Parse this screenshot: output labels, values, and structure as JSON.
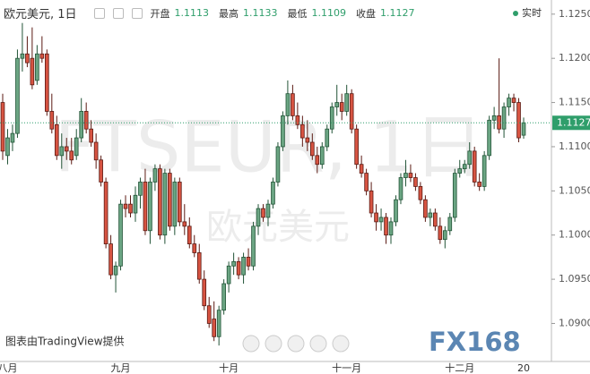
{
  "chart_data": {
    "type": "candlestick",
    "title": "欧元美元, 1日",
    "legend_items": [
      {
        "label": "开盘",
        "value": 1.1113
      },
      {
        "label": "最高",
        "value": 1.1133
      },
      {
        "label": "最低",
        "value": 1.1109
      },
      {
        "label": "收盘",
        "value": 1.1127
      }
    ],
    "realtime_label": "实时",
    "watermark": "FTSEUR, 1日",
    "watermark_sub": "欧元美元",
    "credit": "图表由TradingView提供",
    "logo": "FX168",
    "last_price": {
      "value": 1.1127,
      "label": "1.1127"
    },
    "up_color": "#6ba583",
    "down_color": "#d75442",
    "up_border": "#225437",
    "down_border": "#5b1a13",
    "categories": [
      null,
      "八月",
      null,
      null,
      null,
      null,
      null,
      null,
      null,
      null,
      null,
      null,
      null,
      null,
      null,
      null,
      null,
      null,
      null,
      null,
      null,
      null,
      null,
      null,
      "九月",
      null,
      null,
      null,
      null,
      null,
      null,
      null,
      null,
      null,
      null,
      null,
      null,
      null,
      null,
      null,
      null,
      null,
      null,
      null,
      null,
      null,
      "十月",
      null,
      null,
      null,
      null,
      null,
      null,
      null,
      null,
      null,
      null,
      null,
      null,
      null,
      null,
      null,
      null,
      null,
      null,
      null,
      null,
      null,
      null,
      null,
      "十一月",
      null,
      null,
      null,
      null,
      null,
      null,
      null,
      null,
      null,
      null,
      null,
      null,
      null,
      null,
      null,
      null,
      null,
      null,
      null,
      null,
      null,
      null,
      "十二月",
      null,
      null,
      null,
      null,
      null,
      null,
      null,
      null,
      null,
      null,
      null,
      null,
      "20"
    ],
    "open": [
      1.115,
      1.109,
      1.1105,
      1.1115,
      1.12,
      1.1205,
      1.12,
      1.1175,
      1.1205,
      1.1205,
      1.114,
      1.1125,
      1.109,
      1.11,
      1.1095,
      1.109,
      1.111,
      1.114,
      1.112,
      1.1105,
      1.1085,
      1.106,
      1.099,
      1.0955,
      1.0965,
      1.1035,
      1.1035,
      1.1025,
      1.1045,
      1.106,
      1.1005,
      1.106,
      1.1075,
      1.1,
      1.107,
      1.101,
      1.106,
      1.1015,
      1.101,
      1.099,
      1.098,
      1.095,
      1.092,
      1.0905,
      1.0885,
      1.0915,
      1.0945,
      1.0965,
      1.097,
      1.0955,
      1.0975,
      1.0965,
      1.101,
      1.103,
      1.102,
      1.1035,
      1.106,
      1.11,
      1.1135,
      1.116,
      1.1135,
      1.1125,
      1.111,
      1.1105,
      1.109,
      1.108,
      1.11,
      1.112,
      1.1145,
      1.115,
      1.114,
      1.116,
      1.112,
      1.108,
      1.107,
      1.105,
      1.1025,
      1.1015,
      1.102,
      1.1,
      1.1015,
      1.104,
      1.1065,
      1.107,
      1.1065,
      1.1055,
      1.104,
      1.102,
      1.1025,
      1.101,
      1.0995,
      1.1005,
      1.102,
      1.107,
      1.1075,
      1.108,
      1.1095,
      1.106,
      1.1055,
      1.109,
      1.113,
      1.1135,
      1.112,
      1.1145,
      1.1155,
      1.115,
      1.1113
    ],
    "high": [
      1.116,
      1.112,
      1.1125,
      1.121,
      1.124,
      1.1225,
      1.1235,
      1.1215,
      1.1225,
      1.121,
      1.116,
      1.1135,
      1.1115,
      1.111,
      1.111,
      1.112,
      1.1155,
      1.115,
      1.113,
      1.1115,
      1.109,
      1.1065,
      1.1,
      1.097,
      1.104,
      1.1045,
      1.1045,
      1.1055,
      1.1065,
      1.1075,
      1.1065,
      1.108,
      1.108,
      1.1075,
      1.1075,
      1.1065,
      1.1065,
      1.1035,
      1.102,
      1.1,
      1.099,
      1.096,
      1.093,
      1.0925,
      1.092,
      1.095,
      1.097,
      1.098,
      1.0975,
      1.098,
      1.0985,
      1.1015,
      1.1035,
      1.1035,
      1.104,
      1.1065,
      1.1105,
      1.114,
      1.1175,
      1.117,
      1.115,
      1.1135,
      1.113,
      1.1115,
      1.11,
      1.1105,
      1.1125,
      1.115,
      1.117,
      1.116,
      1.117,
      1.1165,
      1.1125,
      1.109,
      1.1075,
      1.106,
      1.1035,
      1.103,
      1.1025,
      1.102,
      1.1045,
      1.107,
      1.1085,
      1.108,
      1.107,
      1.106,
      1.1045,
      1.103,
      1.103,
      1.102,
      1.101,
      1.1025,
      1.1075,
      1.1085,
      1.1085,
      1.1105,
      1.11,
      1.107,
      1.1095,
      1.1135,
      1.1145,
      1.12,
      1.115,
      1.116,
      1.116,
      1.1155,
      1.1133
    ],
    "low": [
      1.1085,
      1.108,
      1.1095,
      1.111,
      1.1185,
      1.119,
      1.1165,
      1.117,
      1.1195,
      1.1135,
      1.1115,
      1.1085,
      1.1075,
      1.1085,
      1.108,
      1.1085,
      1.1105,
      1.1115,
      1.11,
      1.1075,
      1.1055,
      1.0985,
      1.095,
      1.0935,
      1.096,
      1.102,
      1.102,
      1.1015,
      1.103,
      1.1,
      1.099,
      1.105,
      1.0995,
      1.099,
      1.1005,
      1.1,
      1.101,
      1.1,
      1.0985,
      1.0975,
      1.0945,
      1.0915,
      1.0895,
      1.088,
      1.0875,
      1.091,
      1.0935,
      1.0955,
      1.095,
      1.0945,
      1.096,
      1.096,
      1.1,
      1.1015,
      1.101,
      1.103,
      1.1055,
      1.1095,
      1.1125,
      1.113,
      1.112,
      1.11,
      1.1095,
      1.1085,
      1.107,
      1.1075,
      1.1095,
      1.1115,
      1.1135,
      1.113,
      1.1135,
      1.1115,
      1.1075,
      1.1065,
      1.1045,
      1.102,
      1.1005,
      1.1005,
      1.099,
      1.099,
      1.101,
      1.1035,
      1.1055,
      1.106,
      1.105,
      1.1035,
      1.1015,
      1.101,
      1.1005,
      1.099,
      1.0985,
      1.1,
      1.1015,
      1.1065,
      1.107,
      1.1075,
      1.1055,
      1.105,
      1.105,
      1.1085,
      1.112,
      1.1115,
      1.111,
      1.1135,
      1.114,
      1.1105,
      1.1109
    ],
    "close": [
      1.1095,
      1.111,
      1.1115,
      1.12,
      1.1205,
      1.1195,
      1.117,
      1.1205,
      1.12,
      1.114,
      1.112,
      1.109,
      1.11,
      1.1095,
      1.1085,
      1.111,
      1.114,
      1.112,
      1.1105,
      1.1085,
      1.106,
      1.099,
      1.0955,
      1.0965,
      1.1035,
      1.103,
      1.1025,
      1.1045,
      1.106,
      1.1005,
      1.106,
      1.1075,
      1.1,
      1.107,
      1.101,
      1.106,
      1.1015,
      1.101,
      1.099,
      1.098,
      1.095,
      1.092,
      1.09,
      1.0885,
      1.0915,
      1.0945,
      1.0965,
      1.097,
      1.0955,
      1.0975,
      1.0965,
      1.101,
      1.103,
      1.102,
      1.1035,
      1.106,
      1.11,
      1.1135,
      1.116,
      1.1135,
      1.1125,
      1.111,
      1.1105,
      1.109,
      1.108,
      1.11,
      1.112,
      1.1145,
      1.115,
      1.114,
      1.116,
      1.112,
      1.108,
      1.107,
      1.105,
      1.1025,
      1.1015,
      1.102,
      1.1,
      1.1015,
      1.104,
      1.1065,
      1.107,
      1.1065,
      1.1055,
      1.104,
      1.102,
      1.1025,
      1.101,
      1.0995,
      1.1005,
      1.102,
      1.107,
      1.1075,
      1.108,
      1.1095,
      1.106,
      1.1055,
      1.109,
      1.113,
      1.1135,
      1.112,
      1.1145,
      1.1155,
      1.115,
      1.111,
      1.1127
    ],
    "ylim": [
      1.0861,
      1.1266
    ],
    "yticks": [
      {
        "value": 1.125,
        "label": "1.1250"
      },
      {
        "value": 1.12,
        "label": "1.1200"
      },
      {
        "value": 1.115,
        "label": "1.1150"
      },
      {
        "value": 1.11,
        "label": "1.1100"
      },
      {
        "value": 1.105,
        "label": "1.1050"
      },
      {
        "value": 1.1,
        "label": "1.1000"
      },
      {
        "value": 1.095,
        "label": "1.0950"
      },
      {
        "value": 1.09,
        "label": "1.0900"
      }
    ]
  }
}
